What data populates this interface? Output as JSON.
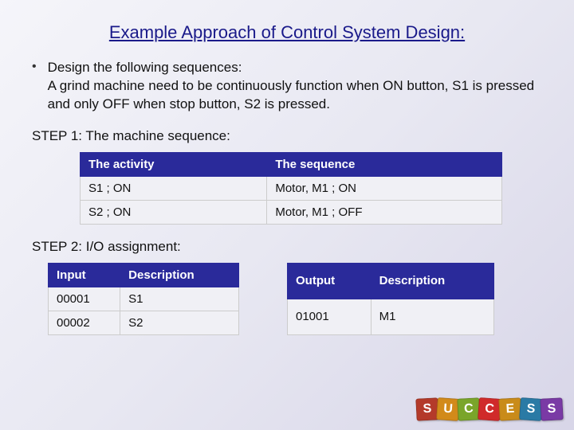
{
  "title": "Example Approach of Control System Design:",
  "bullet": {
    "line1": "Design the following sequences:",
    "line2": "A grind machine need to be continuously function when ON button, S1 is pressed and only OFF when stop button, S2 is pressed."
  },
  "step1_label": "STEP 1: The machine sequence:",
  "step2_label": "STEP 2: I/O assignment:",
  "activity_table": {
    "headers": [
      "The activity",
      "The sequence"
    ],
    "rows": [
      [
        "S1 ; ON",
        "Motor, M1 ; ON"
      ],
      [
        "S2 ; ON",
        "Motor, M1 ; OFF"
      ]
    ]
  },
  "input_table": {
    "headers": [
      "Input",
      "Description"
    ],
    "rows": [
      [
        "00001",
        "S1"
      ],
      [
        "00002",
        "S2"
      ]
    ]
  },
  "output_table": {
    "headers": [
      "Output",
      "Description"
    ],
    "rows": [
      [
        "01001",
        "M1"
      ]
    ]
  },
  "blocks": {
    "letters": [
      "S",
      "U",
      "C",
      "C",
      "E",
      "S",
      "S"
    ],
    "colors": [
      "#b43a2a",
      "#d28a1a",
      "#7aa52a",
      "#d02a2a",
      "#c98b1a",
      "#2a7aa5",
      "#7a3aa5"
    ]
  },
  "theme": {
    "header_bg": "#2a2a9a",
    "header_text": "#ffffff",
    "cell_bg": "#f0f0f5",
    "title_color": "#1a1a8a"
  }
}
